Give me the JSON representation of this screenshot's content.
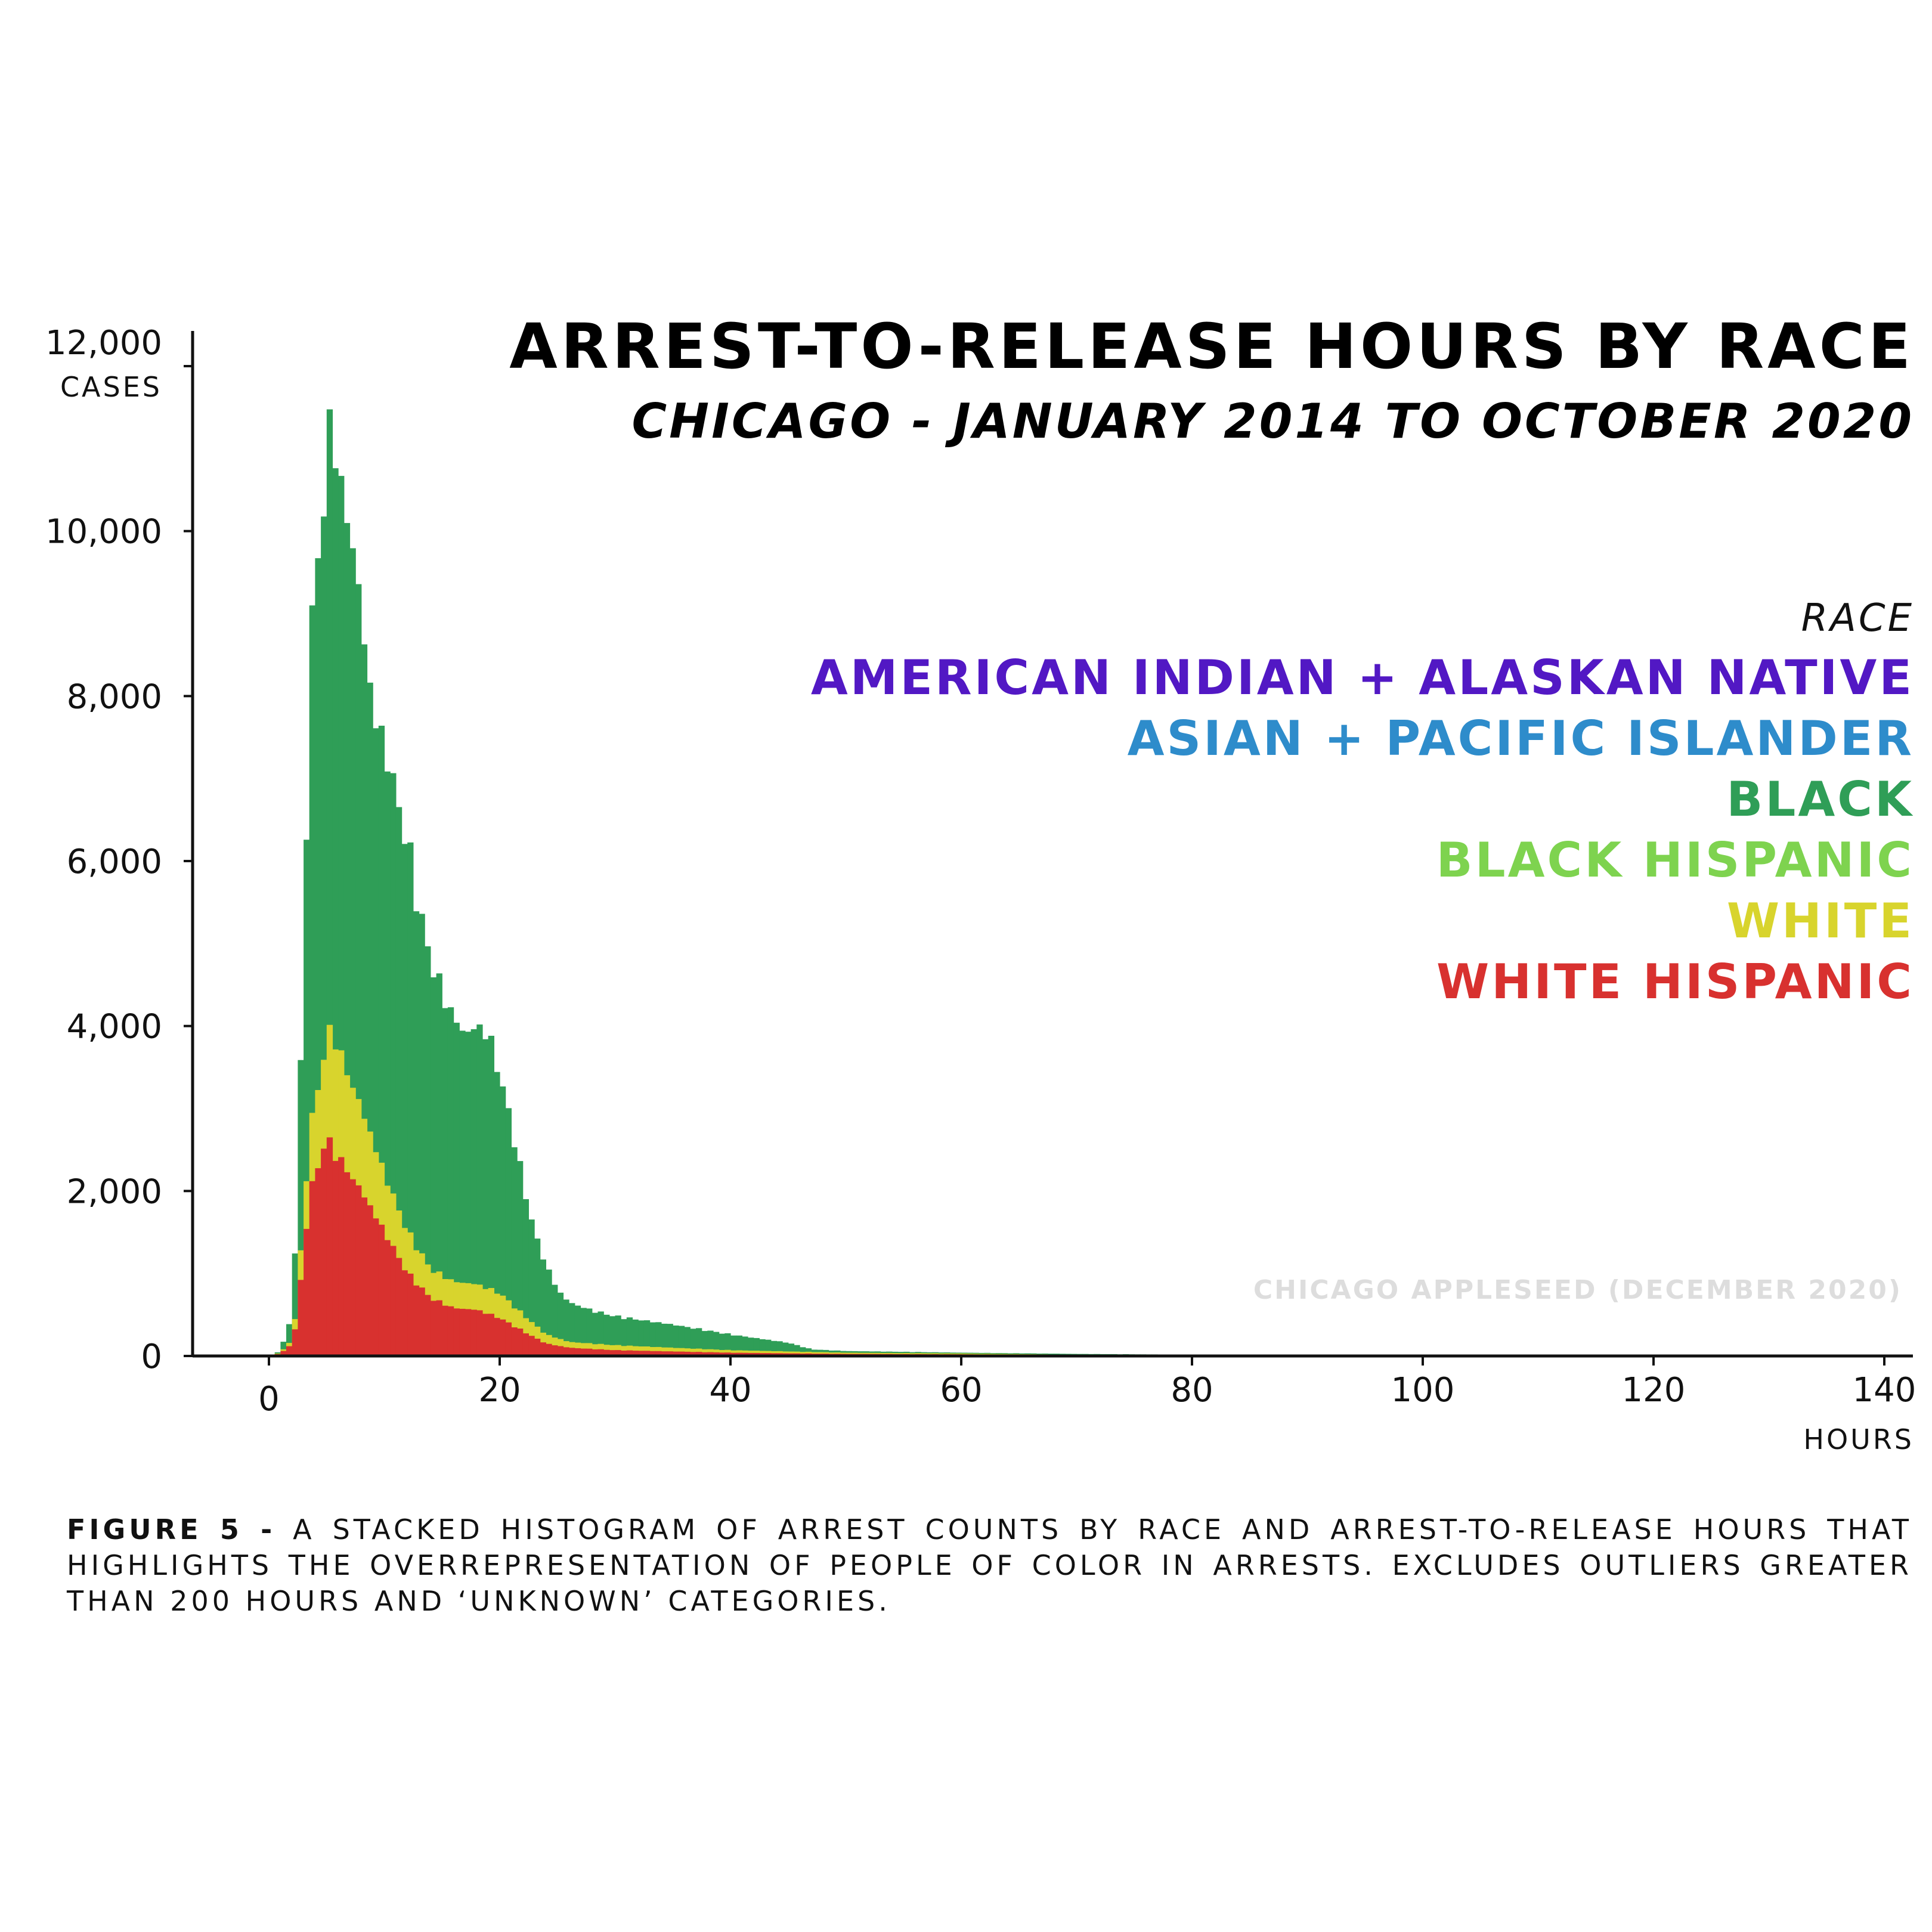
{
  "chart_data": {
    "type": "bar",
    "stacked": true,
    "title": "ARREST-TO-RELEASE HOURS BY RACE",
    "subtitle": "CHICAGO - JANUARY 2014 TO OCTOBER 2020",
    "xlabel": "HOURS",
    "ylabel": "CASES",
    "xlim": [
      -6,
      140
    ],
    "ylim": [
      0,
      12000
    ],
    "x_ticks": [
      0,
      20,
      40,
      60,
      80,
      100,
      120,
      140
    ],
    "y_ticks": [
      0,
      2000,
      4000,
      6000,
      8000,
      10000,
      12000
    ],
    "x_tick_labels": [
      "0",
      "20",
      "40",
      "60",
      "80",
      "100",
      "120",
      "140"
    ],
    "y_tick_labels": [
      "0",
      "2,000",
      "4,000",
      "6,000",
      "8,000",
      "10,000",
      "12,000"
    ],
    "grid": false,
    "legend_title": "RACE",
    "legend_position": "right",
    "series_order": [
      "White Hispanic",
      "White",
      "Black Hispanic",
      "Black",
      "Asian + Pacific Islander",
      "American Indian + Alaskan Native"
    ],
    "legend": [
      {
        "label": "AMERICAN INDIAN + ALASKAN NATIVE",
        "color": "#5218c4"
      },
      {
        "label": "ASIAN + PACIFIC ISLANDER",
        "color": "#2e8ccb"
      },
      {
        "label": "BLACK",
        "color": "#2f9e57"
      },
      {
        "label": "BLACK HISPANIC",
        "color": "#7ed34f"
      },
      {
        "label": "WHITE",
        "color": "#d8d42d"
      },
      {
        "label": "WHITE HISPANIC",
        "color": "#d8312f"
      }
    ],
    "profile_white_hispanic": [
      [
        0,
        0
      ],
      [
        1,
        30
      ],
      [
        2,
        150
      ],
      [
        2.5,
        500
      ],
      [
        3,
        1300
      ],
      [
        3.5,
        1900
      ],
      [
        4,
        2200
      ],
      [
        5,
        2650
      ],
      [
        5.5,
        2500
      ],
      [
        6,
        2400
      ],
      [
        8,
        2000
      ],
      [
        10,
        1500
      ],
      [
        12,
        1000
      ],
      [
        14,
        700
      ],
      [
        16,
        580
      ],
      [
        18,
        560
      ],
      [
        20,
        460
      ],
      [
        22,
        300
      ],
      [
        24,
        150
      ],
      [
        26,
        100
      ],
      [
        30,
        70
      ],
      [
        40,
        40
      ],
      [
        50,
        25
      ],
      [
        60,
        20
      ],
      [
        70,
        12
      ],
      [
        80,
        4
      ],
      [
        90,
        0
      ]
    ],
    "profile_white_top": [
      [
        0,
        0
      ],
      [
        1,
        40
      ],
      [
        2,
        200
      ],
      [
        2.5,
        700
      ],
      [
        3,
        1800
      ],
      [
        3.5,
        2600
      ],
      [
        4,
        3100
      ],
      [
        5,
        3800
      ],
      [
        5.5,
        4000
      ],
      [
        6,
        3700
      ],
      [
        8,
        3000
      ],
      [
        10,
        2200
      ],
      [
        12,
        1500
      ],
      [
        14,
        1050
      ],
      [
        16,
        900
      ],
      [
        18,
        870
      ],
      [
        20,
        760
      ],
      [
        22,
        500
      ],
      [
        24,
        260
      ],
      [
        26,
        170
      ],
      [
        30,
        130
      ],
      [
        40,
        70
      ],
      [
        50,
        40
      ],
      [
        60,
        30
      ],
      [
        70,
        15
      ],
      [
        80,
        5
      ],
      [
        90,
        0
      ]
    ],
    "profile_total": [
      [
        0,
        0
      ],
      [
        1,
        60
      ],
      [
        2,
        500
      ],
      [
        2.5,
        2000
      ],
      [
        3,
        5000
      ],
      [
        3.5,
        8000
      ],
      [
        4,
        9600
      ],
      [
        5,
        10500
      ],
      [
        5.5,
        11800
      ],
      [
        6,
        10500
      ],
      [
        7,
        10100
      ],
      [
        8,
        9000
      ],
      [
        9,
        7800
      ],
      [
        10,
        7400
      ],
      [
        11,
        6800
      ],
      [
        12,
        6200
      ],
      [
        13,
        5400
      ],
      [
        14,
        4800
      ],
      [
        15,
        4400
      ],
      [
        16,
        4100
      ],
      [
        17,
        3900
      ],
      [
        18,
        4000
      ],
      [
        19,
        3900
      ],
      [
        20,
        3400
      ],
      [
        21,
        2800
      ],
      [
        22,
        2100
      ],
      [
        23,
        1500
      ],
      [
        24,
        1100
      ],
      [
        25,
        800
      ],
      [
        26,
        650
      ],
      [
        28,
        550
      ],
      [
        30,
        480
      ],
      [
        35,
        380
      ],
      [
        40,
        260
      ],
      [
        45,
        160
      ],
      [
        47,
        80
      ],
      [
        50,
        60
      ],
      [
        60,
        40
      ],
      [
        70,
        25
      ],
      [
        80,
        15
      ],
      [
        85,
        5
      ],
      [
        90,
        0
      ]
    ]
  },
  "labels": {
    "title": "ARREST-TO-RELEASE HOURS BY RACE",
    "subtitle": "CHICAGO - JANUARY 2014 TO OCTOBER 2020",
    "legend_title": "RACE",
    "x_unit": "HOURS",
    "y_unit": "CASES",
    "source": "CHICAGO APPLESEED (DECEMBER 2020)",
    "caption_lead": "FIGURE 5 -",
    "caption_body": " A STACKED HISTOGRAM OF ARREST COUNTS BY RACE AND ARREST-TO-RELEASE HOURS THAT HIGHLIGHTS THE OVERREPRESENTATION OF PEOPLE OF COLOR IN ARRESTS. EXCLUDES OUTLIERS GREATER THAN 200 HOURS AND ‘UNKNOWN’ CATEGORIES."
  }
}
